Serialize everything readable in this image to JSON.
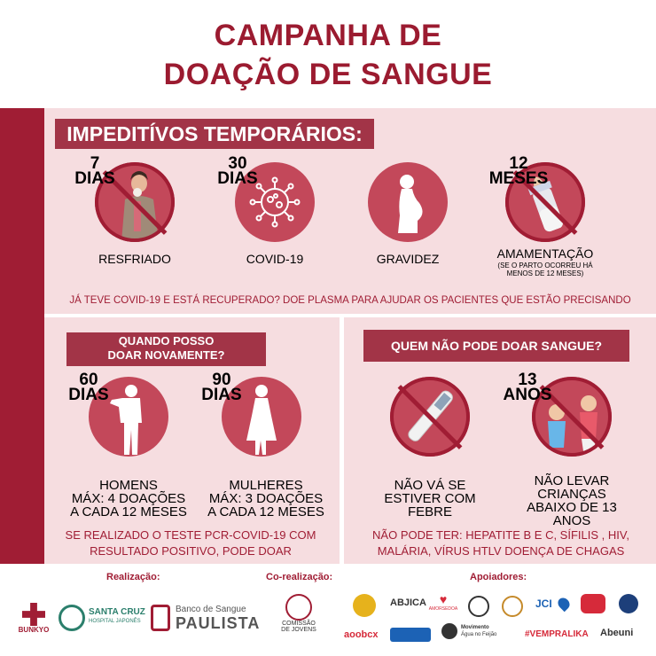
{
  "title": {
    "line1": "CAMPANHA DE",
    "line2": "DOAÇÃO DE SANGUE"
  },
  "impedimentos": {
    "title": "IMPEDITÍVOS TEMPORÁRIOS:",
    "items": [
      {
        "num": "7",
        "unit": "DIAS",
        "label": "RESFRIADO",
        "note": ""
      },
      {
        "num": "30",
        "unit": "DIAS",
        "label": "COVID-19",
        "note": ""
      },
      {
        "num": "",
        "unit": "",
        "label": "GRAVIDEZ",
        "note": ""
      },
      {
        "num": "12",
        "unit": "MESES",
        "label": "AMAMENTAÇÃO",
        "note": "(SE O PARTO OCORREU HÁ MENOS DE 12 MESES)"
      }
    ],
    "plasma_note": "JÁ TEVE COVID-19 E ESTÁ RECUPERADO? DOE PLASMA PARA AJUDAR OS PACIENTES QUE ESTÃO PRECISANDO"
  },
  "quando": {
    "title_line1": "QUANDO POSSO",
    "title_line2": "DOAR NOVAMENTE?",
    "items": [
      {
        "num": "60",
        "unit": "DIAS",
        "line1": "HOMENS",
        "line2": "MÁX: 4 DOAÇÕES",
        "line3": "A CADA 12 MESES"
      },
      {
        "num": "90",
        "unit": "DIAS",
        "line1": "MULHERES",
        "line2": "MÁX: 3 DOAÇÕES",
        "line3": "A CADA 12 MESES"
      }
    ],
    "note": "SE REALIZADO O TESTE PCR-COVID-19 COM RESULTADO POSITIVO, PODE DOAR"
  },
  "quem": {
    "title": "QUEM NÃO PODE DOAR SANGUE?",
    "items": [
      {
        "num": "",
        "unit": "",
        "line1": "NÃO VÁ SE",
        "line2": "ESTIVER COM",
        "line3": "FEBRE",
        "line4": ""
      },
      {
        "num": "13",
        "unit": "ANOS",
        "line1": "NÃO LEVAR",
        "line2": "CRIANÇAS",
        "line3": "ABAIXO DE 13",
        "line4": "ANOS"
      }
    ],
    "note": "NÃO PODE TER: HEPATITE B E C, SÍFILIS , HIV, MALÁRIA, VÍRUS HTLV DOENÇA DE CHAGAS"
  },
  "footer": {
    "realizacao": "Realização:",
    "corealizacao": "Co-realização:",
    "apoiadores": "Apoiadores:",
    "logos": {
      "bunkyo": "BUNKYO",
      "santa_cruz_1": "SANTA CRUZ",
      "santa_cruz_2": "HOSPITAL JAPONÊS",
      "banco_1": "Banco de Sangue",
      "banco_2": "PAULISTA",
      "comissao_1": "COMISSÃO",
      "comissao_2": "DE JOVENS",
      "abjica": "ABJICA",
      "amor": "AMORSEDOA",
      "jci": "JCI",
      "aoobcx": "aoobcx",
      "movimento_1": "Movimento",
      "movimento_2": "Água no Feijão",
      "vempralika": "#VEMPRALIKA",
      "abeuni": "Abeuni"
    }
  },
  "colors": {
    "primary": "#9b1b30",
    "panel": "#f6dde0",
    "circle": "#c3485a"
  }
}
